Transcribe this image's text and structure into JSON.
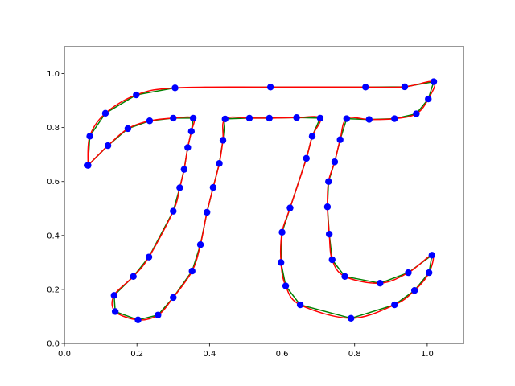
{
  "chart_data": {
    "type": "line",
    "title": "",
    "xlabel": "",
    "ylabel": "",
    "xlim": [
      0.0,
      1.1
    ],
    "ylim": [
      0.0,
      1.1
    ],
    "grid": false,
    "x_ticks": [
      "0.0",
      "0.2",
      "0.4",
      "0.6",
      "0.8",
      "1.0"
    ],
    "y_ticks": [
      "0.0",
      "0.2",
      "0.4",
      "0.6",
      "0.8",
      "1.0"
    ],
    "x_tick_values": [
      0.0,
      0.2,
      0.4,
      0.6,
      0.8,
      1.0
    ],
    "y_tick_values": [
      0.0,
      0.2,
      0.4,
      0.6,
      0.8,
      1.0
    ],
    "colors": {
      "points": "#0000ff",
      "polyline": "#008000",
      "smooth": "#ff0000"
    },
    "points": [
      [
        0.065,
        0.66
      ],
      [
        0.07,
        0.768
      ],
      [
        0.113,
        0.853
      ],
      [
        0.198,
        0.921
      ],
      [
        0.305,
        0.947
      ],
      [
        0.568,
        0.95
      ],
      [
        0.83,
        0.95
      ],
      [
        0.938,
        0.951
      ],
      [
        1.018,
        0.97
      ],
      [
        1.003,
        0.906
      ],
      [
        0.97,
        0.851
      ],
      [
        0.91,
        0.833
      ],
      [
        0.84,
        0.83
      ],
      [
        0.778,
        0.833
      ],
      [
        0.76,
        0.755
      ],
      [
        0.745,
        0.673
      ],
      [
        0.728,
        0.6
      ],
      [
        0.725,
        0.506
      ],
      [
        0.73,
        0.405
      ],
      [
        0.738,
        0.31
      ],
      [
        0.773,
        0.248
      ],
      [
        0.87,
        0.223
      ],
      [
        0.948,
        0.262
      ],
      [
        1.013,
        0.327
      ],
      [
        1.005,
        0.262
      ],
      [
        0.965,
        0.196
      ],
      [
        0.91,
        0.143
      ],
      [
        0.79,
        0.093
      ],
      [
        0.65,
        0.143
      ],
      [
        0.61,
        0.213
      ],
      [
        0.597,
        0.3
      ],
      [
        0.6,
        0.412
      ],
      [
        0.622,
        0.502
      ],
      [
        0.667,
        0.686
      ],
      [
        0.683,
        0.768
      ],
      [
        0.705,
        0.835
      ],
      [
        0.64,
        0.837
      ],
      [
        0.565,
        0.835
      ],
      [
        0.51,
        0.835
      ],
      [
        0.443,
        0.832
      ],
      [
        0.437,
        0.753
      ],
      [
        0.427,
        0.667
      ],
      [
        0.41,
        0.578
      ],
      [
        0.393,
        0.486
      ],
      [
        0.375,
        0.366
      ],
      [
        0.352,
        0.268
      ],
      [
        0.3,
        0.17
      ],
      [
        0.258,
        0.105
      ],
      [
        0.203,
        0.087
      ],
      [
        0.14,
        0.118
      ],
      [
        0.137,
        0.178
      ],
      [
        0.19,
        0.248
      ],
      [
        0.233,
        0.32
      ],
      [
        0.3,
        0.49
      ],
      [
        0.318,
        0.577
      ],
      [
        0.33,
        0.645
      ],
      [
        0.34,
        0.726
      ],
      [
        0.35,
        0.786
      ],
      [
        0.355,
        0.835
      ],
      [
        0.3,
        0.835
      ],
      [
        0.235,
        0.825
      ],
      [
        0.175,
        0.796
      ],
      [
        0.12,
        0.733
      ],
      [
        0.065,
        0.66
      ]
    ]
  }
}
